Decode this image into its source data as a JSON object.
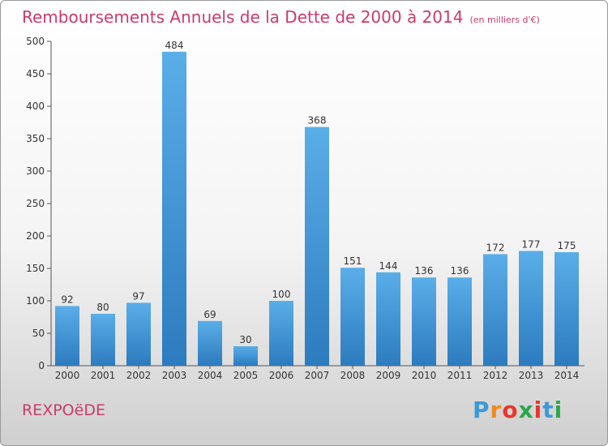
{
  "chart_data": {
    "type": "bar",
    "title": "Remboursements Annuels de la Dette de 2000 à 2014",
    "unit_label": "(en milliers d'€)",
    "categories": [
      "2000",
      "2001",
      "2002",
      "2003",
      "2004",
      "2005",
      "2006",
      "2007",
      "2008",
      "2009",
      "2010",
      "2011",
      "2012",
      "2013",
      "2014"
    ],
    "values": [
      92,
      80,
      97,
      484,
      69,
      30,
      100,
      368,
      151,
      144,
      136,
      136,
      172,
      177,
      175
    ],
    "yticks": [
      0,
      50,
      100,
      150,
      200,
      250,
      300,
      350,
      400,
      450,
      500
    ],
    "ylim": [
      0,
      500
    ],
    "xlabel": "",
    "ylabel": "",
    "grid": false,
    "colors": {
      "bar_light": "#5aaee8",
      "bar_dark": "#2c7bbf",
      "title": "#cc3a6d"
    }
  },
  "footer": {
    "commune": "REXPOëDE",
    "logo_letters": [
      "P",
      "r",
      "o",
      "x",
      "i",
      "t",
      "i"
    ],
    "logo_colors": [
      "#3a9ad9",
      "#f08a1c",
      "#e8362a",
      "#2aa84a",
      "#e8362a",
      "#3a9ad9",
      "#2aa84a"
    ]
  }
}
